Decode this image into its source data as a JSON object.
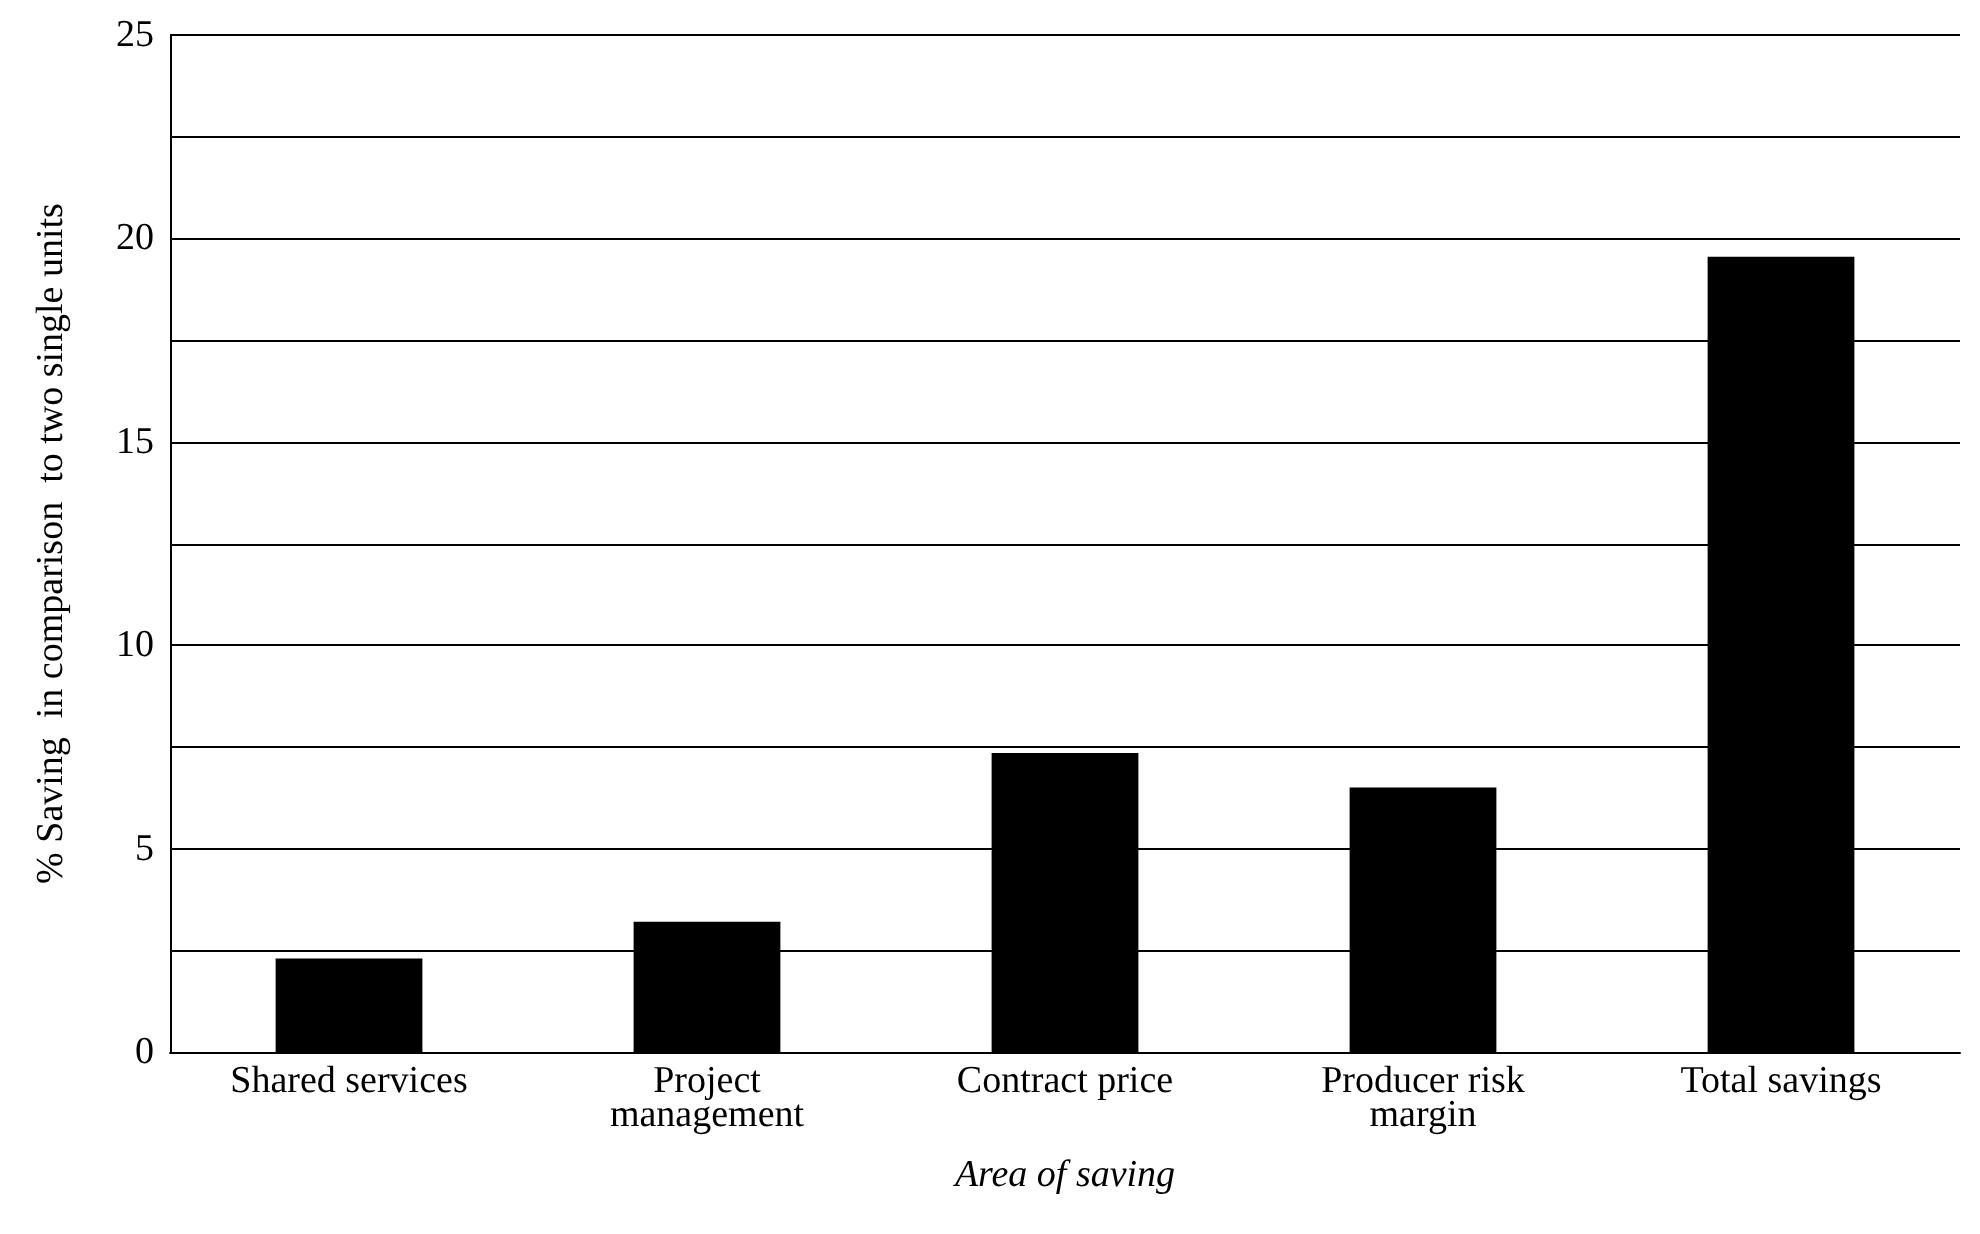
{
  "chart_data": {
    "type": "bar",
    "categories": [
      "Shared services",
      "Project\nmanagement",
      "Contract price",
      "Producer risk\nmargin",
      "Total savings"
    ],
    "values": [
      2.3,
      3.2,
      7.35,
      6.5,
      19.55
    ],
    "color": "#000000",
    "xlabel": "Area of saving",
    "ylabel": "% Saving  in comparison  to two single units",
    "ylim": [
      0,
      25
    ],
    "yticks": [
      0,
      {
        "value": 2.5,
        "label": null
      },
      5,
      {
        "value": 7.5,
        "label": null
      },
      10,
      {
        "value": 12.5,
        "label": null
      },
      15,
      {
        "value": 17.5,
        "label": null
      },
      20,
      {
        "value": 22.5,
        "label": null
      },
      25
    ],
    "grid": "y"
  }
}
